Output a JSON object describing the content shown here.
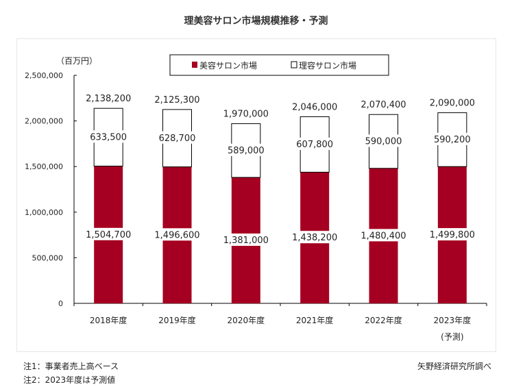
{
  "title": "理美容サロン市場規模推移・予測",
  "chart_data": {
    "type": "bar",
    "stacked": true,
    "title": "理美容サロン市場規模推移・予測",
    "ylabel": "（百万円）",
    "xlabel": "",
    "categories": [
      "2018年度",
      "2019年度",
      "2020年度",
      "2021年度",
      "2022年度",
      "2023年度"
    ],
    "category_sublabels": [
      "",
      "",
      "",
      "",
      "",
      "(予測)"
    ],
    "series": [
      {
        "name": "美容サロン市場",
        "values": [
          1504700,
          1496600,
          1381000,
          1438200,
          1480400,
          1499800
        ],
        "color": "#a50021"
      },
      {
        "name": "理容サロン市場",
        "values": [
          633500,
          628700,
          589000,
          607800,
          590000,
          590200
        ],
        "color": "#ffffff"
      }
    ],
    "totals": [
      2138200,
      2125300,
      1970000,
      2046000,
      2070400,
      2090000
    ],
    "ylim": [
      0,
      2500000
    ],
    "yticks": [
      "0",
      "500,000",
      "1,000,000",
      "1,500,000",
      "2,000,000",
      "2,500,000"
    ],
    "legend_placement": "top-center",
    "grid": false
  },
  "notes": [
    "注1：事業者売上高ベース",
    "注2：2023年度は予測値"
  ],
  "source": "矢野経済研究所調べ"
}
